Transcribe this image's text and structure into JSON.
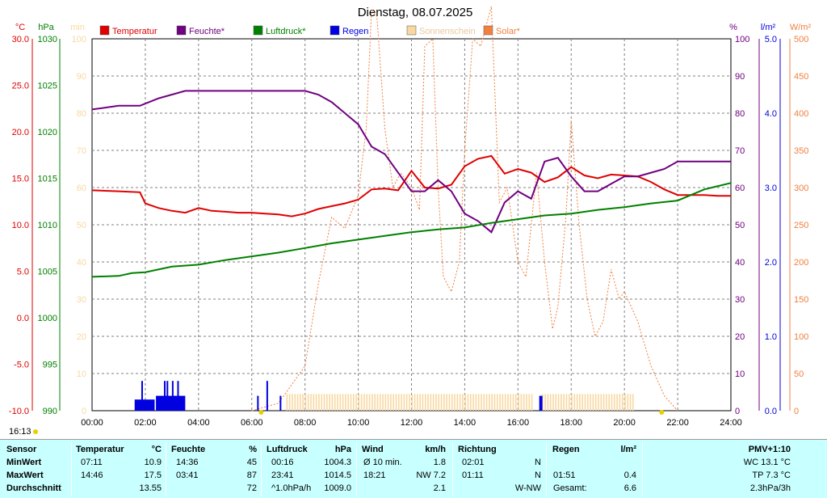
{
  "title": "Dienstag, 08.07.2025",
  "time_stamp": "16:13",
  "colors": {
    "temp": "#e00000",
    "hum": "#700080",
    "press": "#008000",
    "rain": "#0000e0",
    "sun": "#f8d8a0",
    "solar": "#f08040",
    "grid": "#808080"
  },
  "axes": {
    "temp": {
      "unit": "°C",
      "ticks": [
        "30.0",
        "25.0",
        "20.0",
        "15.0",
        "10.0",
        "5.0",
        "0.0",
        "-5.0",
        "-10.0"
      ]
    },
    "press": {
      "unit": "hPa",
      "ticks": [
        "1030",
        "1025",
        "1020",
        "1015",
        "1010",
        "1005",
        "1000",
        "995",
        "990"
      ]
    },
    "min": {
      "unit": "min",
      "ticks": [
        "100",
        "90",
        "80",
        "70",
        "60",
        "50",
        "40",
        "30",
        "20",
        "10",
        "0"
      ]
    },
    "hum": {
      "unit": "%",
      "ticks": [
        "100",
        "90",
        "80",
        "70",
        "60",
        "50",
        "40",
        "30",
        "20",
        "10",
        "0"
      ]
    },
    "rain": {
      "unit": "l/m²",
      "ticks": [
        "5.0",
        "4.0",
        "3.0",
        "2.0",
        "1.0",
        "0.0"
      ]
    },
    "solar": {
      "unit": "W/m²",
      "ticks": [
        "500",
        "450",
        "400",
        "350",
        "300",
        "250",
        "200",
        "150",
        "100",
        "50",
        "0"
      ]
    },
    "x_ticks": [
      "00:00",
      "02:00",
      "04:00",
      "06:00",
      "08:00",
      "10:00",
      "12:00",
      "14:00",
      "16:00",
      "18:00",
      "20:00",
      "22:00",
      "24:00"
    ]
  },
  "legend": [
    "Temperatur",
    "Feuchte*",
    "Luftdruck*",
    "Regen",
    "Sonnenschein",
    "Solar*"
  ],
  "chart_data": {
    "type": "line",
    "x_unit": "hours",
    "series": [
      {
        "name": "Temperatur",
        "unit": "°C",
        "x": [
          0,
          1,
          1.8,
          2,
          2.5,
          3,
          3.5,
          4,
          4.5,
          5,
          5.5,
          6,
          6.5,
          7,
          7.5,
          8,
          8.5,
          9,
          9.5,
          10,
          10.5,
          11,
          11.5,
          12,
          12.5,
          13,
          13.5,
          14,
          14.5,
          15,
          15.5,
          16,
          16.5,
          17,
          17.5,
          18,
          18.5,
          19,
          19.5,
          20,
          20.5,
          21,
          21.5,
          22,
          22.5,
          23,
          23.5,
          24
        ],
        "y": [
          13.7,
          13.6,
          13.5,
          12.3,
          11.8,
          11.5,
          11.3,
          11.8,
          11.5,
          11.4,
          11.3,
          11.3,
          11.2,
          11.1,
          10.9,
          11.2,
          11.7,
          12,
          12.3,
          12.7,
          13.8,
          13.9,
          13.7,
          15.8,
          14,
          13.9,
          14.3,
          16.3,
          17.1,
          17.4,
          15.5,
          16,
          15.6,
          14.6,
          15.1,
          16.2,
          15.3,
          15,
          15.4,
          15.3,
          15.2,
          14.6,
          13.8,
          13.2,
          13.2,
          13.2,
          13.1,
          13.1
        ]
      },
      {
        "name": "Feuchte*",
        "unit": "%",
        "x": [
          0,
          1,
          1.8,
          2.5,
          3,
          3.5,
          4,
          4.5,
          5,
          6,
          7,
          8,
          8.5,
          9,
          9.5,
          10,
          10.5,
          11,
          11.5,
          12,
          12.5,
          13,
          13.5,
          14,
          14.5,
          15,
          15.5,
          16,
          16.5,
          17,
          17.5,
          18,
          18.5,
          19,
          19.5,
          20,
          20.5,
          21,
          21.5,
          22,
          22.5,
          23,
          23.5,
          24
        ],
        "y": [
          81,
          82,
          82,
          84,
          85,
          86,
          86,
          86,
          86,
          86,
          86,
          86,
          85,
          83,
          80,
          77,
          71,
          69,
          64,
          59,
          59,
          62,
          59,
          53,
          51,
          48,
          56,
          59,
          57,
          67,
          68,
          63,
          59,
          59,
          61,
          63,
          63,
          64,
          65,
          67,
          67,
          67,
          67,
          67
        ]
      },
      {
        "name": "Luftdruck*",
        "unit": "hPa",
        "x": [
          0,
          1,
          1.5,
          2,
          3,
          4,
          5,
          6,
          7,
          8,
          9,
          10,
          11,
          12,
          13,
          14,
          15,
          16,
          17,
          18,
          19,
          20,
          21,
          22,
          23,
          24
        ],
        "y": [
          1004.4,
          1004.5,
          1004.8,
          1004.9,
          1005.5,
          1005.7,
          1006.2,
          1006.6,
          1007,
          1007.5,
          1008,
          1008.4,
          1008.8,
          1009.2,
          1009.5,
          1009.7,
          1010.2,
          1010.6,
          1011,
          1011.2,
          1011.6,
          1011.9,
          1012.3,
          1012.6,
          1013.8,
          1014.5
        ]
      }
    ],
    "rain_bars": [
      {
        "x": 1.6,
        "w": 0.75,
        "v": 0.15
      },
      {
        "x": 1.85,
        "w": 0.05,
        "v": 0.4
      },
      {
        "x": 2.4,
        "w": 1.1,
        "v": 0.2
      },
      {
        "x": 2.7,
        "w": 0.05,
        "v": 0.4
      },
      {
        "x": 2.8,
        "w": 0.05,
        "v": 0.4
      },
      {
        "x": 3.0,
        "w": 0.05,
        "v": 0.4
      },
      {
        "x": 3.2,
        "w": 0.05,
        "v": 0.4
      },
      {
        "x": 6.2,
        "w": 0.05,
        "v": 0.2
      },
      {
        "x": 6.55,
        "w": 0.05,
        "v": 0.4
      },
      {
        "x": 7.05,
        "w": 0.05,
        "v": 0.2
      },
      {
        "x": 16.8,
        "w": 0.12,
        "v": 0.2
      }
    ],
    "sunshine": {
      "from": 7.3,
      "to": 20.4,
      "gap_from": 16.5,
      "gap_to": 16.8,
      "value_min": 4.5
    },
    "solar": {
      "unit": "W/m²",
      "x": [
        6,
        7,
        8,
        8.5,
        9,
        9.5,
        10,
        10.3,
        10.5,
        10.7,
        11,
        11.3,
        11.6,
        12,
        12.3,
        12.5,
        12.8,
        13,
        13.2,
        13.5,
        13.8,
        14,
        14.3,
        14.6,
        15,
        15.3,
        15.6,
        16,
        16.3,
        16.7,
        17,
        17.3,
        17.5,
        17.8,
        18,
        18.3,
        18.6,
        18.9,
        19.2,
        19.5,
        19.8,
        20,
        20.5,
        21,
        21.5,
        22
      ],
      "y": [
        0,
        10,
        60,
        170,
        260,
        245,
        290,
        380,
        540,
        530,
        380,
        300,
        320,
        300,
        270,
        490,
        500,
        300,
        180,
        160,
        200,
        350,
        500,
        490,
        560,
        280,
        300,
        200,
        180,
        320,
        200,
        110,
        140,
        260,
        390,
        250,
        150,
        100,
        120,
        190,
        150,
        160,
        120,
        60,
        20,
        0
      ]
    },
    "ylim_temp": [
      -10,
      30
    ],
    "ylim_press": [
      990,
      1030
    ],
    "ylim_hum": [
      0,
      100
    ],
    "ylim_rain": [
      0,
      5
    ],
    "ylim_solar": [
      0,
      500
    ],
    "xlim": [
      0,
      24
    ]
  },
  "table": {
    "headers": {
      "sensor": "Sensor",
      "temp": "Temperatur",
      "temp_unit": "°C",
      "hum": "Feuchte",
      "hum_unit": "%",
      "press": "Luftdruck",
      "press_unit": "hPa",
      "wind": "Wind",
      "wind_unit": "km/h",
      "dir": "Richtung",
      "rain": "Regen",
      "rain_unit": "l/m²",
      "pmv": "PMV+1:10"
    },
    "rows": [
      {
        "label": "MinWert",
        "temp_t": "07:11",
        "temp_v": "10.9",
        "hum_t": "14:36",
        "hum_v": "45",
        "press_t": "00:16",
        "press_v": "1004.3",
        "wind_t": "Ø 10 min.",
        "wind_v": "1.8",
        "dir_t": "02:01",
        "dir_v": "N",
        "rain_t": "",
        "rain_v": "",
        "pmv": "WC 13.1 °C"
      },
      {
        "label": "MaxWert",
        "temp_t": "14:46",
        "temp_v": "17.5",
        "hum_t": "03:41",
        "hum_v": "87",
        "press_t": "23:41",
        "press_v": "1014.5",
        "wind_t": "18:21",
        "wind_v": "NW 7.2",
        "dir_t": "01:11",
        "dir_v": "N",
        "rain_t": "01:51",
        "rain_v": "0.4",
        "pmv": "TP 7.3 °C"
      },
      {
        "label": "Durchschnitt",
        "temp_t": "",
        "temp_v": "13.55",
        "hum_t": "",
        "hum_v": "72",
        "press_t": "^1.0hPa/h",
        "press_v": "1009.0",
        "wind_t": "",
        "wind_v": "2.1",
        "dir_t": "",
        "dir_v": "W-NW",
        "rain_t": "Gesamt:",
        "rain_v": "6.6",
        "pmv": "2.3hPa/3h"
      }
    ]
  }
}
